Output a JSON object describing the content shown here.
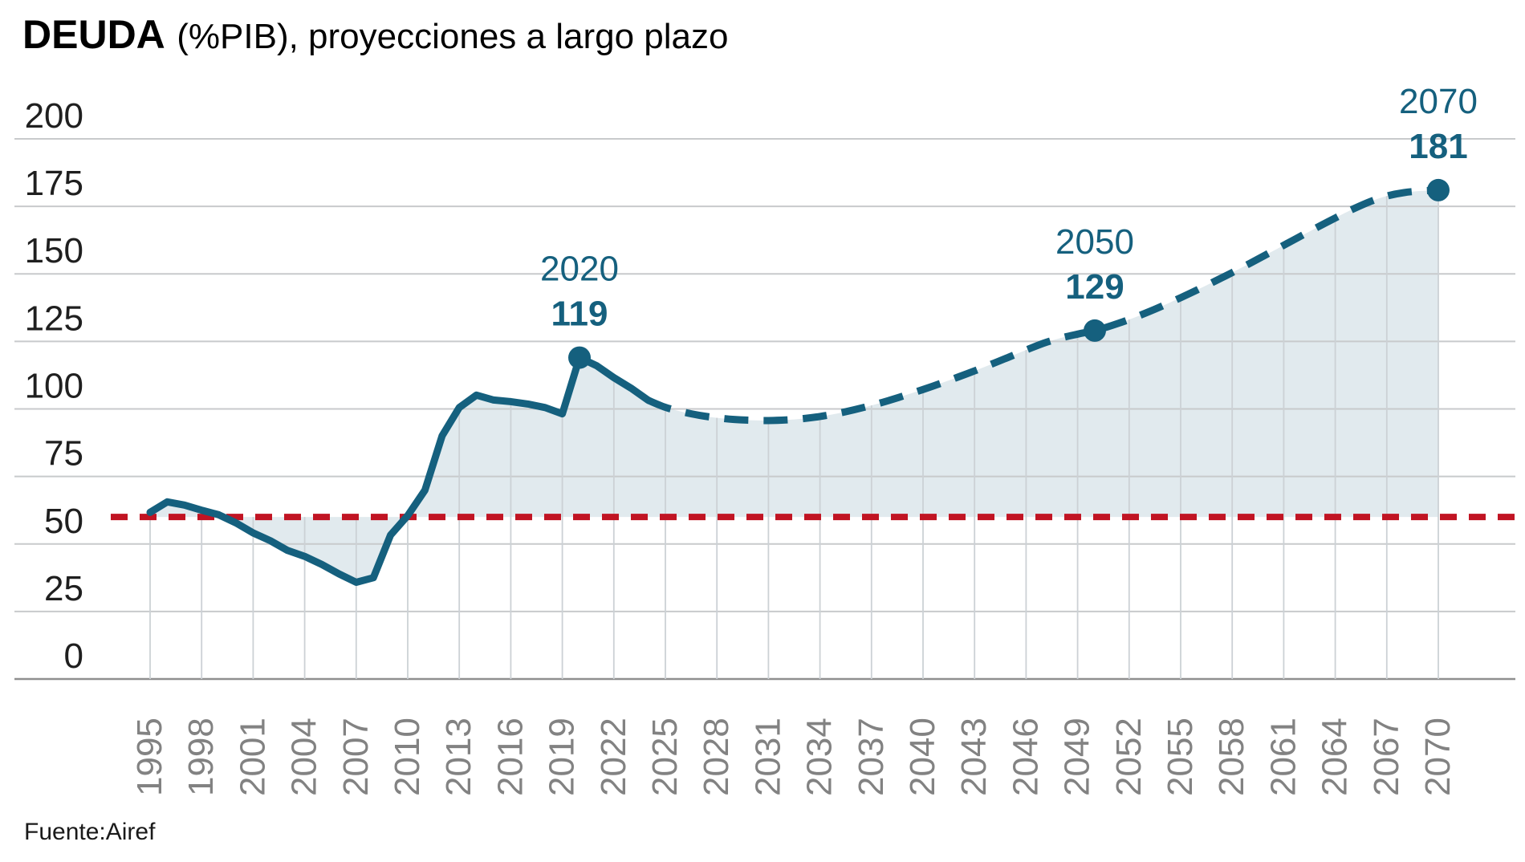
{
  "title": {
    "bold": "DEUDA",
    "rest": "(%PIB), proyecciones a largo plazo"
  },
  "source": "Fuente:Airef",
  "colors": {
    "line_teal": "#15607e",
    "reference_red": "#c11423",
    "area_fill": "rgba(21,96,126,0.13)",
    "hgrid": "#c8cacc",
    "vgrid": "#ccd1d5",
    "axis_zero": "#8f8f8f",
    "ytick_label": "#1f1f1f",
    "xtick_label": "#828282",
    "title_text": "#000000"
  },
  "chart_data": {
    "type": "line",
    "title": "DEUDA (%PIB), proyecciones a largo plazo",
    "xlabel": "",
    "ylabel": "",
    "ylim": [
      0,
      200
    ],
    "yticks": [
      0,
      25,
      50,
      75,
      100,
      125,
      150,
      175,
      200
    ],
    "xticks": [
      1995,
      1998,
      2001,
      2004,
      2007,
      2010,
      2013,
      2016,
      2019,
      2022,
      2025,
      2028,
      2031,
      2034,
      2037,
      2040,
      2043,
      2046,
      2049,
      2052,
      2055,
      2058,
      2061,
      2064,
      2067,
      2070
    ],
    "grid": true,
    "legend": false,
    "area_fill": "between curve and reference line",
    "reference_line": {
      "value": 60,
      "style": "dashed",
      "color": "#c11423"
    },
    "series": [
      {
        "name": "deuda-historica",
        "style": "solid",
        "points": [
          [
            1995,
            61.7
          ],
          [
            1996,
            65.6
          ],
          [
            1997,
            64.4
          ],
          [
            1998,
            62.5
          ],
          [
            1999,
            60.8
          ],
          [
            2000,
            57.8
          ],
          [
            2001,
            54.1
          ],
          [
            2002,
            51.2
          ],
          [
            2003,
            47.6
          ],
          [
            2004,
            45.4
          ],
          [
            2005,
            42.4
          ],
          [
            2006,
            38.9
          ],
          [
            2007,
            35.8
          ],
          [
            2008,
            37.5
          ],
          [
            2009,
            53.3
          ],
          [
            2010,
            60.5
          ],
          [
            2011,
            69.9
          ],
          [
            2012,
            90.0
          ],
          [
            2013,
            100.5
          ],
          [
            2014,
            105.1
          ],
          [
            2015,
            103.3
          ],
          [
            2016,
            102.7
          ],
          [
            2017,
            101.8
          ],
          [
            2018,
            100.5
          ],
          [
            2019,
            98.2
          ],
          [
            2020,
            119.0
          ],
          [
            2021,
            116.0
          ],
          [
            2022,
            111.6
          ],
          [
            2023,
            107.7
          ],
          [
            2024,
            103.2
          ]
        ]
      },
      {
        "name": "deuda-proyeccion",
        "style": "dashed",
        "points": [
          [
            2024,
            103.2
          ],
          [
            2025,
            100.6
          ],
          [
            2026,
            98.9
          ],
          [
            2027,
            97.6
          ],
          [
            2028,
            96.7
          ],
          [
            2029,
            96.1
          ],
          [
            2030,
            95.8
          ],
          [
            2031,
            95.7
          ],
          [
            2032,
            95.9
          ],
          [
            2033,
            96.4
          ],
          [
            2034,
            97.2
          ],
          [
            2035,
            98.3
          ],
          [
            2036,
            99.7
          ],
          [
            2037,
            101.3
          ],
          [
            2038,
            103.1
          ],
          [
            2039,
            105.1
          ],
          [
            2040,
            107.2
          ],
          [
            2041,
            109.4
          ],
          [
            2042,
            111.7
          ],
          [
            2043,
            114.1
          ],
          [
            2044,
            116.6
          ],
          [
            2045,
            119.2
          ],
          [
            2046,
            121.8
          ],
          [
            2047,
            124.3
          ],
          [
            2048,
            126.2
          ],
          [
            2049,
            127.7
          ],
          [
            2050,
            129.0
          ],
          [
            2051,
            130.9
          ],
          [
            2052,
            133.1
          ],
          [
            2053,
            135.6
          ],
          [
            2054,
            138.3
          ],
          [
            2055,
            141.2
          ],
          [
            2056,
            144.2
          ],
          [
            2057,
            147.3
          ],
          [
            2058,
            150.5
          ],
          [
            2059,
            153.8
          ],
          [
            2060,
            157.2
          ],
          [
            2061,
            160.6
          ],
          [
            2062,
            164.0
          ],
          [
            2063,
            167.4
          ],
          [
            2064,
            170.7
          ],
          [
            2065,
            173.9
          ],
          [
            2066,
            176.7
          ],
          [
            2067,
            178.8
          ],
          [
            2068,
            180.1
          ],
          [
            2069,
            180.7
          ],
          [
            2070,
            181.0
          ]
        ]
      }
    ],
    "annotations": [
      {
        "year": 2020,
        "value": 119,
        "year_label": "2020",
        "value_label": "119"
      },
      {
        "year": 2050,
        "value": 129,
        "year_label": "2050",
        "value_label": "129"
      },
      {
        "year": 2070,
        "value": 181,
        "year_label": "2070",
        "value_label": "181"
      }
    ]
  }
}
